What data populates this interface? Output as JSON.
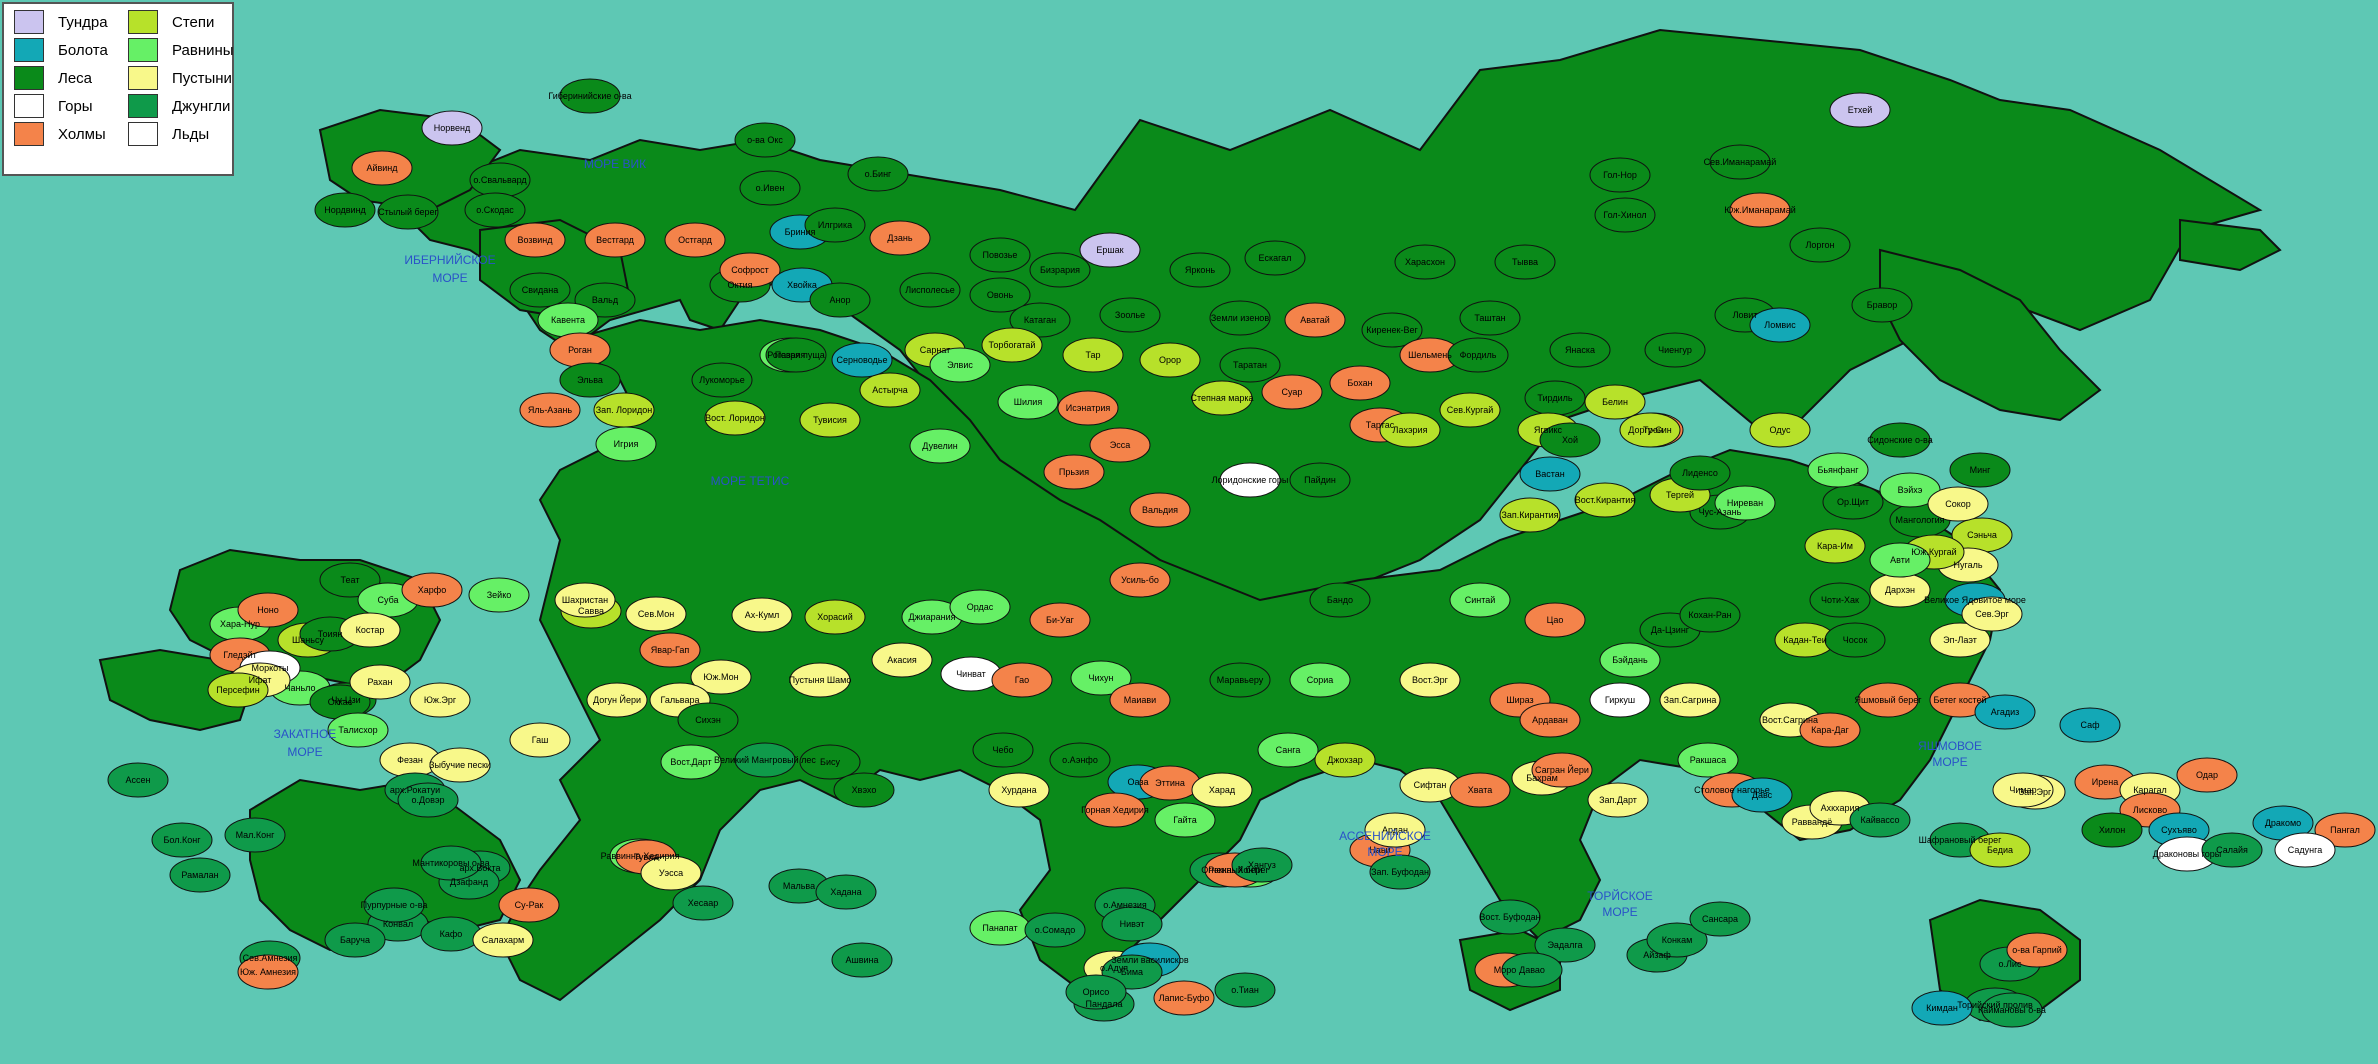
{
  "legend": {
    "items": [
      {
        "label": "Тундра",
        "color": "#cbc4ef"
      },
      {
        "label": "Болота",
        "color": "#13a8b6"
      },
      {
        "label": "Леса",
        "color": "#0a8a1a"
      },
      {
        "label": "Горы",
        "color": "#ffffff"
      },
      {
        "label": "Холмы",
        "color": "#f4834a"
      },
      {
        "label": "Степи",
        "color": "#b7e12a"
      },
      {
        "label": "Равнины",
        "color": "#66f066"
      },
      {
        "label": "Пустыни",
        "color": "#f8f88a"
      },
      {
        "label": "Джунгли",
        "color": "#0f9a4a"
      },
      {
        "label": "Льды",
        "color": "#ffffff"
      }
    ]
  },
  "colors": {
    "ocean": "#5ec8b4",
    "border": "#111111",
    "sea_label": "#2a52c8"
  },
  "seas": [
    {
      "label": "МОРЕ ВИК"
    },
    {
      "label": "ИБЕРНИЙСКОЕ"
    },
    {
      "label": "МОРЕ"
    },
    {
      "label": "МОРЕ ТЕТИС"
    },
    {
      "label": "ЗАКАТНОЕ"
    },
    {
      "label": "МОРЕ"
    },
    {
      "label": "АССЕНИЙСКОЕ"
    },
    {
      "label": "МОРЕ"
    },
    {
      "label": "ТОРЙСКОЕ"
    },
    {
      "label": "МОРЕ"
    },
    {
      "label": "ЯШМОВОЕ"
    },
    {
      "label": "МОРЕ"
    }
  ],
  "places": [
    {
      "label": "Норвенд",
      "biome": "tundra"
    },
    {
      "label": "Айвинд",
      "biome": "hills"
    },
    {
      "label": "Стылый берег",
      "biome": "forest"
    },
    {
      "label": "Нордвинд",
      "biome": "forest"
    },
    {
      "label": "Гиберинийские о-ва",
      "biome": "forest"
    },
    {
      "label": "о.Свальвард",
      "biome": "forest"
    },
    {
      "label": "о.Скодас",
      "biome": "forest"
    },
    {
      "label": "о-ва Окс",
      "biome": "forest"
    },
    {
      "label": "о.Ивен",
      "biome": "forest"
    },
    {
      "label": "о.Бинг",
      "biome": "forest"
    },
    {
      "label": "Возвинд",
      "biome": "hills"
    },
    {
      "label": "Вестгард",
      "biome": "hills"
    },
    {
      "label": "Остгард",
      "biome": "hills"
    },
    {
      "label": "Бриния",
      "biome": "swamp"
    },
    {
      "label": "Илгрика",
      "biome": "forest"
    },
    {
      "label": "Дзань",
      "biome": "hills"
    },
    {
      "label": "Повозье",
      "biome": "forest"
    },
    {
      "label": "Бизрария",
      "biome": "forest"
    },
    {
      "label": "Ершак",
      "biome": "tundra"
    },
    {
      "label": "Ярконь",
      "biome": "forest"
    },
    {
      "label": "Ескагал",
      "biome": "forest"
    },
    {
      "label": "Харасхон",
      "biome": "forest"
    },
    {
      "label": "Тывва",
      "biome": "forest"
    },
    {
      "label": "Гол-Нор",
      "biome": "forest"
    },
    {
      "label": "Сев.Иманарамай",
      "biome": "forest"
    },
    {
      "label": "Етхей",
      "biome": "tundra"
    },
    {
      "label": "Гол-Хинол",
      "biome": "forest"
    },
    {
      "label": "Юж.Иманарамай",
      "biome": "hills"
    },
    {
      "label": "Лоргон",
      "biome": "forest"
    },
    {
      "label": "Свидана",
      "biome": "forest"
    },
    {
      "label": "Вальд",
      "biome": "forest"
    },
    {
      "label": "Октия",
      "biome": "forest"
    },
    {
      "label": "Софрост",
      "biome": "hills"
    },
    {
      "label": "Хвойка",
      "biome": "swamp"
    },
    {
      "label": "Анор",
      "biome": "forest"
    },
    {
      "label": "Лисполесье",
      "biome": "forest"
    },
    {
      "label": "Овонь",
      "biome": "forest"
    },
    {
      "label": "Катаган",
      "biome": "forest"
    },
    {
      "label": "Зоолье",
      "biome": "forest"
    },
    {
      "label": "Земли изенов",
      "biome": "forest"
    },
    {
      "label": "Аватай",
      "biome": "hills"
    },
    {
      "label": "Киренек-Вег",
      "biome": "forest"
    },
    {
      "label": "Таштан",
      "biome": "forest"
    },
    {
      "label": "Янаска",
      "biome": "forest"
    },
    {
      "label": "Чиенгур",
      "biome": "forest"
    },
    {
      "label": "Ловит",
      "biome": "forest"
    },
    {
      "label": "Ломвис",
      "biome": "swamp"
    },
    {
      "label": "Бравор",
      "biome": "forest"
    },
    {
      "label": "Кавента",
      "biome": "plains"
    },
    {
      "label": "Роган",
      "biome": "hills"
    },
    {
      "label": "Пазрия",
      "biome": "plains"
    },
    {
      "label": "Лукоморье",
      "biome": "forest"
    },
    {
      "label": "Роговая пуща",
      "biome": "forest"
    },
    {
      "label": "Серноводье",
      "biome": "swamp"
    },
    {
      "label": "Сарнат",
      "biome": "steppe"
    },
    {
      "label": "Торбогатай",
      "biome": "steppe"
    },
    {
      "label": "Тар",
      "biome": "steppe"
    },
    {
      "label": "Орор",
      "biome": "steppe"
    },
    {
      "label": "Таратан",
      "biome": "forest"
    },
    {
      "label": "Шельмень",
      "biome": "hills"
    },
    {
      "label": "Фордиль",
      "biome": "forest"
    },
    {
      "label": "Тирдиль",
      "biome": "forest"
    },
    {
      "label": "Трон",
      "biome": "hills"
    },
    {
      "label": "Эльва",
      "biome": "forest"
    },
    {
      "label": "Зап. Лоридон",
      "biome": "steppe"
    },
    {
      "label": "Вост. Лоридон",
      "biome": "steppe"
    },
    {
      "label": "Тувисия",
      "biome": "steppe"
    },
    {
      "label": "Астырча",
      "biome": "steppe"
    },
    {
      "label": "Элвис",
      "biome": "plains"
    },
    {
      "label": "Шилия",
      "biome": "plains"
    },
    {
      "label": "Исэнатрия",
      "biome": "hills"
    },
    {
      "label": "Степная марка",
      "biome": "steppe"
    },
    {
      "label": "Суар",
      "biome": "hills"
    },
    {
      "label": "Бохан",
      "biome": "hills"
    },
    {
      "label": "Ягвикс",
      "biome": "steppe"
    },
    {
      "label": "Белин",
      "biome": "steppe"
    },
    {
      "label": "Чус-Азань",
      "biome": "forest"
    },
    {
      "label": "Яль-Азань",
      "biome": "hills"
    },
    {
      "label": "Игрия",
      "biome": "plains"
    },
    {
      "label": "Дувелин",
      "biome": "plains"
    },
    {
      "label": "Прьзия",
      "biome": "hills"
    },
    {
      "label": "Эсса",
      "biome": "hills"
    },
    {
      "label": "Вальдия",
      "biome": "hills"
    },
    {
      "label": "Лоридонские горы",
      "biome": "mountains"
    },
    {
      "label": "Пайдин",
      "biome": "forest"
    },
    {
      "label": "Тартас",
      "biome": "hills"
    },
    {
      "label": "Лахэрия",
      "biome": "steppe"
    },
    {
      "label": "Сев.Кургай",
      "biome": "steppe"
    },
    {
      "label": "Зап.Кирантия",
      "biome": "steppe"
    },
    {
      "label": "Вост.Кирантия",
      "biome": "steppe"
    },
    {
      "label": "Тергей",
      "biome": "steppe"
    },
    {
      "label": "Одус",
      "biome": "steppe"
    },
    {
      "label": "Ор.Щит",
      "biome": "forest"
    },
    {
      "label": "Мангология",
      "biome": "forest"
    },
    {
      "label": "Сэньча",
      "biome": "steppe"
    },
    {
      "label": "Минг",
      "biome": "forest"
    },
    {
      "label": "Хой",
      "biome": "forest"
    },
    {
      "label": "Вастан",
      "biome": "swamp"
    },
    {
      "label": "Доргу-Син",
      "biome": "steppe"
    },
    {
      "label": "Лиденсо",
      "biome": "forest"
    },
    {
      "label": "Бьянфанг",
      "biome": "plains"
    },
    {
      "label": "Вэйхэ",
      "biome": "plains"
    },
    {
      "label": "Сидонские о-ва",
      "biome": "forest"
    },
    {
      "label": "Сокор",
      "biome": "desert"
    },
    {
      "label": "Нугаль",
      "biome": "desert"
    },
    {
      "label": "Ниреван",
      "biome": "plains"
    },
    {
      "label": "Кара-Им",
      "biome": "steppe"
    },
    {
      "label": "Юж.Кургай",
      "biome": "steppe"
    },
    {
      "label": "Дархэн",
      "biome": "desert"
    },
    {
      "label": "Великое Ядовитое море",
      "biome": "swamp"
    },
    {
      "label": "Хара-Нур",
      "biome": "plains"
    },
    {
      "label": "Теат",
      "biome": "forest"
    },
    {
      "label": "Суба",
      "biome": "plains"
    },
    {
      "label": "Шаньсу",
      "biome": "steppe"
    },
    {
      "label": "Чаньло",
      "biome": "plains"
    },
    {
      "label": "Чу-Цзи",
      "biome": "forest"
    },
    {
      "label": "Тоиян",
      "biome": "forest"
    },
    {
      "label": "Ноно",
      "biome": "hills"
    },
    {
      "label": "Гледэйт",
      "biome": "hills"
    },
    {
      "label": "Моркоты",
      "biome": "mountains"
    },
    {
      "label": "Оккас",
      "biome": "forest"
    },
    {
      "label": "Костар",
      "biome": "desert"
    },
    {
      "label": "Харфо",
      "biome": "hills"
    },
    {
      "label": "Зейко",
      "biome": "plains"
    },
    {
      "label": "Савва",
      "biome": "steppe"
    },
    {
      "label": "Сев.Мон",
      "biome": "desert"
    },
    {
      "label": "Ах-Кумл",
      "biome": "desert"
    },
    {
      "label": "Хорасий",
      "biome": "steppe"
    },
    {
      "label": "Джиарания",
      "biome": "plains"
    },
    {
      "label": "Ордас",
      "biome": "plains"
    },
    {
      "label": "Би-Уаг",
      "biome": "hills"
    },
    {
      "label": "Усиль-бо",
      "biome": "hills"
    },
    {
      "label": "Бандо",
      "biome": "forest"
    },
    {
      "label": "Синтай",
      "biome": "plains"
    },
    {
      "label": "Цао",
      "biome": "hills"
    },
    {
      "label": "Бэйдань",
      "biome": "plains"
    },
    {
      "label": "Да-Цзинг",
      "biome": "forest"
    },
    {
      "label": "Кохан-Ран",
      "biome": "forest"
    },
    {
      "label": "Кадан-Теи",
      "biome": "steppe"
    },
    {
      "label": "Чосок",
      "biome": "forest"
    },
    {
      "label": "Чоти-Хак",
      "biome": "forest"
    },
    {
      "label": "Авти",
      "biome": "plains"
    },
    {
      "label": "Эп-Лаэт",
      "biome": "desert"
    },
    {
      "label": "Сев.Эрг",
      "biome": "desert"
    },
    {
      "label": "Ифат",
      "biome": "desert"
    },
    {
      "label": "Персефин",
      "biome": "steppe"
    },
    {
      "label": "Рахан",
      "biome": "desert"
    },
    {
      "label": "Шахристан",
      "biome": "desert"
    },
    {
      "label": "Явар-Гап",
      "biome": "hills"
    },
    {
      "label": "Юж.Мон",
      "biome": "desert"
    },
    {
      "label": "Пустыня Шамо",
      "biome": "desert"
    },
    {
      "label": "Акасия",
      "biome": "desert"
    },
    {
      "label": "Чинват",
      "biome": "mountains"
    },
    {
      "label": "Гао",
      "biome": "hills"
    },
    {
      "label": "Чихун",
      "biome": "plains"
    },
    {
      "label": "Маиави",
      "biome": "hills"
    },
    {
      "label": "Маравьеру",
      "biome": "forest"
    },
    {
      "label": "Сориа",
      "biome": "plains"
    },
    {
      "label": "Вост.Эрг",
      "biome": "desert"
    },
    {
      "label": "Шираз",
      "biome": "hills"
    },
    {
      "label": "Ардаван",
      "biome": "hills"
    },
    {
      "label": "Гиркуш",
      "biome": "mountains"
    },
    {
      "label": "Зап.Сагрина",
      "biome": "desert"
    },
    {
      "label": "Вост.Сагрина",
      "biome": "desert"
    },
    {
      "label": "Кара-Даг",
      "biome": "hills"
    },
    {
      "label": "Яшмовый берег",
      "biome": "hills"
    },
    {
      "label": "Бетег костей",
      "biome": "hills"
    },
    {
      "label": "Агадиз",
      "biome": "swamp"
    },
    {
      "label": "Саф",
      "biome": "swamp"
    },
    {
      "label": "Зап.Эрг",
      "biome": "desert"
    },
    {
      "label": "Юж.Эрг",
      "biome": "desert"
    },
    {
      "label": "Талисхор",
      "biome": "plains"
    },
    {
      "label": "Фезан",
      "biome": "desert"
    },
    {
      "label": "Зыбучие пески",
      "biome": "desert"
    },
    {
      "label": "Гаш",
      "biome": "desert"
    },
    {
      "label": "Догун Йери",
      "biome": "desert"
    },
    {
      "label": "Гальвара",
      "biome": "desert"
    },
    {
      "label": "Вост.Дарт",
      "biome": "plains"
    },
    {
      "label": "Сихэн",
      "biome": "forest"
    },
    {
      "label": "Великий Мангровый лес",
      "biome": "jungle"
    },
    {
      "label": "Бису",
      "biome": "forest"
    },
    {
      "label": "Хвэхо",
      "biome": "forest"
    },
    {
      "label": "Чебо",
      "biome": "forest"
    },
    {
      "label": "о.Аэнфо",
      "biome": "forest"
    },
    {
      "label": "Оаза",
      "biome": "swamp"
    },
    {
      "label": "Эттина",
      "biome": "hills"
    },
    {
      "label": "Харад",
      "biome": "desert"
    },
    {
      "label": "Санга",
      "biome": "plains"
    },
    {
      "label": "Джохзар",
      "biome": "steppe"
    },
    {
      "label": "Сифтан",
      "biome": "desert"
    },
    {
      "label": "Хвата",
      "biome": "hills"
    },
    {
      "label": "Бахрам",
      "biome": "desert"
    },
    {
      "label": "Сагран Йери",
      "biome": "hills"
    },
    {
      "label": "Зап.Дарт",
      "biome": "desert"
    },
    {
      "label": "Ракшаса",
      "biome": "plains"
    },
    {
      "label": "Столовое нагорье",
      "biome": "hills"
    },
    {
      "label": "Давс",
      "biome": "swamp"
    },
    {
      "label": "Раввандё",
      "biome": "desert"
    },
    {
      "label": "Ахкхария",
      "biome": "desert"
    },
    {
      "label": "Кайвассо",
      "biome": "jungle"
    },
    {
      "label": "Шафрановый берег",
      "biome": "jungle"
    },
    {
      "label": "Бедиа",
      "biome": "steppe"
    },
    {
      "label": "Чимар",
      "biome": "desert"
    },
    {
      "label": "Ирена",
      "biome": "hills"
    },
    {
      "label": "Карагал",
      "biome": "desert"
    },
    {
      "label": "Лисково",
      "biome": "hills"
    },
    {
      "label": "Одар",
      "biome": "hills"
    },
    {
      "label": "Хилон",
      "biome": "forest"
    },
    {
      "label": "Сухъяво",
      "biome": "swamp"
    },
    {
      "label": "Драконовы горы",
      "biome": "mountains"
    },
    {
      "label": "Дракомо",
      "biome": "swamp"
    },
    {
      "label": "Пангал",
      "biome": "hills"
    },
    {
      "label": "Ассен",
      "biome": "jungle"
    },
    {
      "label": "арх.Рокатуи",
      "biome": "jungle"
    },
    {
      "label": "о.Довэр",
      "biome": "jungle"
    },
    {
      "label": "арх.Вокта",
      "biome": "jungle"
    },
    {
      "label": "Дзафанд",
      "biome": "jungle"
    },
    {
      "label": "Су-Рак",
      "biome": "hills"
    },
    {
      "label": "Хурдана",
      "biome": "desert"
    },
    {
      "label": "Горная Хедирия",
      "biome": "hills"
    },
    {
      "label": "Гайта",
      "biome": "plains"
    },
    {
      "label": "Хонти",
      "biome": "plains"
    },
    {
      "label": "Нави",
      "biome": "hills"
    },
    {
      "label": "Ардан",
      "biome": "desert"
    },
    {
      "label": "Салайя",
      "biome": "jungle"
    },
    {
      "label": "Садунга",
      "biome": "mountains"
    },
    {
      "label": "Мал.Конг",
      "biome": "jungle"
    },
    {
      "label": "Бол.Конг",
      "biome": "jungle"
    },
    {
      "label": "Рамалан",
      "biome": "jungle"
    },
    {
      "label": "Конвал",
      "biome": "jungle"
    },
    {
      "label": "Пурпурные о-ва",
      "biome": "jungle"
    },
    {
      "label": "Мантикоровы о-ва",
      "biome": "jungle"
    },
    {
      "label": "Кафо",
      "biome": "jungle"
    },
    {
      "label": "Салахарм",
      "biome": "desert"
    },
    {
      "label": "Раввинна Хедирия",
      "biome": "plains"
    },
    {
      "label": "Тувиа",
      "biome": "hills"
    },
    {
      "label": "Уэсса",
      "biome": "desert"
    },
    {
      "label": "Хесаар",
      "biome": "jungle"
    },
    {
      "label": "Мальва",
      "biome": "jungle"
    },
    {
      "label": "Хадана",
      "biome": "jungle"
    },
    {
      "label": "Ашвина",
      "biome": "jungle"
    },
    {
      "label": "Панапат",
      "biome": "plains"
    },
    {
      "label": "о.Сомадо",
      "biome": "jungle"
    },
    {
      "label": "о.Адуя",
      "biome": "desert"
    },
    {
      "label": "Земли василисков",
      "biome": "swamp"
    },
    {
      "label": "Лапис-Буфо",
      "biome": "hills"
    },
    {
      "label": "Зап. Буфодан",
      "biome": "jungle"
    },
    {
      "label": "Вост. Буфодан",
      "biome": "jungle"
    },
    {
      "label": "Эадалга",
      "biome": "jungle"
    },
    {
      "label": "Айзаф",
      "biome": "jungle"
    },
    {
      "label": "Конкам",
      "biome": "jungle"
    },
    {
      "label": "Сансара",
      "biome": "jungle"
    },
    {
      "label": "о.Лис",
      "biome": "jungle"
    },
    {
      "label": "о-ва Гарпий",
      "biome": "hills"
    },
    {
      "label": "Торийский пролив",
      "biome": "jungle"
    },
    {
      "label": "Каймановы о-ва",
      "biome": "jungle"
    },
    {
      "label": "Баруча",
      "biome": "jungle"
    },
    {
      "label": "Сев.Амнезия",
      "biome": "jungle"
    },
    {
      "label": "Юж. Амнезия",
      "biome": "hills"
    },
    {
      "label": "о.Амнезия",
      "biome": "jungle"
    },
    {
      "label": "Рэкка",
      "biome": "jungle"
    },
    {
      "label": "Огненный берег",
      "biome": "hills"
    },
    {
      "label": "Хангуз",
      "biome": "jungle"
    },
    {
      "label": "Нивэт",
      "biome": "jungle"
    },
    {
      "label": "Бима",
      "biome": "jungle"
    },
    {
      "label": "Пандала",
      "biome": "jungle"
    },
    {
      "label": "Орисо",
      "biome": "jungle"
    },
    {
      "label": "Моро",
      "biome": "hills"
    },
    {
      "label": "Давао",
      "biome": "jungle"
    },
    {
      "label": "Кимдан",
      "biome": "swamp"
    },
    {
      "label": "о.Тиан",
      "biome": "jungle"
    }
  ]
}
